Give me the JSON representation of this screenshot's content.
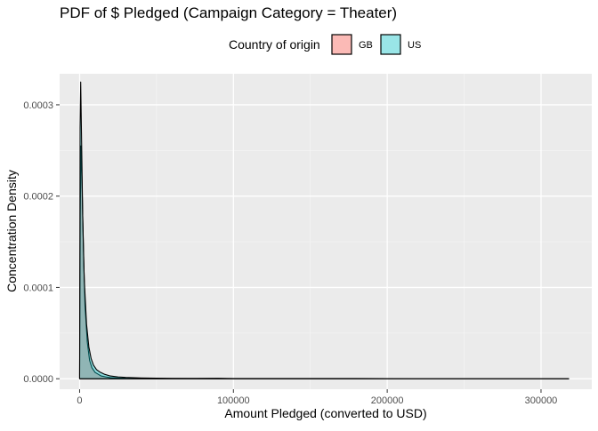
{
  "chart_data": {
    "type": "area",
    "title": "PDF of $ Pledged (Campaign Category = Theater)",
    "xlabel": "Amount Pledged (converted to USD)",
    "ylabel": "Concentration Density",
    "xlim": [
      -13000,
      333000
    ],
    "ylim": [
      -1.15e-05,
      0.000334
    ],
    "x_ticks": [
      0,
      100000,
      200000,
      300000
    ],
    "x_tick_labels": [
      "0",
      "100000",
      "200000",
      "300000"
    ],
    "y_ticks": [
      0,
      0.0001,
      0.0002,
      0.0003
    ],
    "y_tick_labels": [
      "0.0000",
      "0.0001",
      "0.0002",
      "0.0003"
    ],
    "grid": true,
    "legend": {
      "title": "Country of origin",
      "placement": "top",
      "entries": [
        "GB",
        "US"
      ]
    },
    "series": [
      {
        "name": "GB",
        "color": "#F8766D",
        "points": [
          [
            0,
            2e-06
          ],
          [
            400,
            0.00018
          ],
          [
            900,
            0.000255
          ],
          [
            1500,
            0.00022
          ],
          [
            2500,
            0.00014
          ],
          [
            3500,
            8e-05
          ],
          [
            5000,
            4e-05
          ],
          [
            6500,
            2e-05
          ],
          [
            8000,
            1.2e-05
          ],
          [
            10000,
            7e-06
          ],
          [
            12000,
            5e-06
          ],
          [
            14000,
            3e-06
          ],
          [
            17000,
            2e-06
          ],
          [
            20000,
            1.2e-06
          ],
          [
            25000,
            8e-07
          ],
          [
            30000,
            5e-07
          ],
          [
            40000,
            3e-07
          ],
          [
            60000,
            2e-07
          ],
          [
            90000,
            4e-07
          ],
          [
            100000,
            1e-07
          ],
          [
            150000,
            5e-08
          ],
          [
            200000,
            2e-08
          ],
          [
            250000,
            1e-08
          ],
          [
            318000,
            0
          ]
        ]
      },
      {
        "name": "US",
        "color": "#00BFC4",
        "points": [
          [
            0,
            4e-06
          ],
          [
            300,
            0.000275
          ],
          [
            700,
            0.000325
          ],
          [
            1200,
            0.00027
          ],
          [
            2000,
            0.00018
          ],
          [
            3000,
            0.00011
          ],
          [
            4500,
            6e-05
          ],
          [
            6000,
            3.5e-05
          ],
          [
            7500,
            2.2e-05
          ],
          [
            9000,
            1.5e-05
          ],
          [
            11000,
            1e-05
          ],
          [
            13000,
            7.5e-06
          ],
          [
            16000,
            5e-06
          ],
          [
            20000,
            3e-06
          ],
          [
            25000,
            2e-06
          ],
          [
            30000,
            1.5e-06
          ],
          [
            40000,
            9e-07
          ],
          [
            50000,
            6e-07
          ],
          [
            60000,
            4e-07
          ],
          [
            75000,
            3e-07
          ],
          [
            90000,
            4e-07
          ],
          [
            100000,
            2e-07
          ],
          [
            143000,
            2e-07
          ],
          [
            180000,
            2e-07
          ],
          [
            220000,
            5e-08
          ],
          [
            280000,
            2e-08
          ],
          [
            318000,
            0
          ]
        ]
      }
    ]
  }
}
